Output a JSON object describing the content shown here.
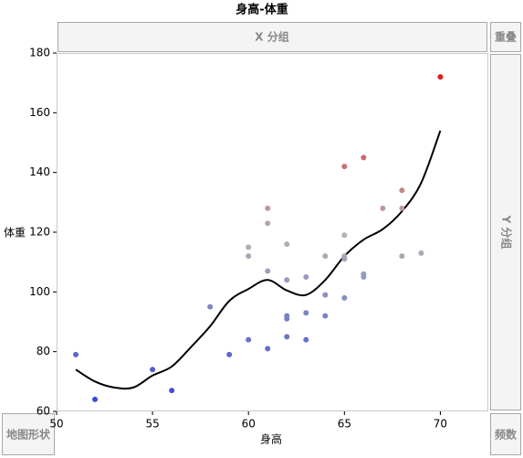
{
  "chart_data": {
    "type": "scatter",
    "title": "身高-体重",
    "x_label": "身高",
    "y_label": "体重",
    "zones": {
      "x_group": "X 分组",
      "overlay": "重叠",
      "y_group": "Y 分组",
      "map_shape": "地图形状",
      "frequency": "频数"
    },
    "x": [
      51,
      52,
      55,
      56,
      58,
      59,
      60,
      60,
      60,
      61,
      61,
      61,
      61,
      62,
      62,
      62,
      62,
      62,
      63,
      63,
      63,
      64,
      64,
      64,
      65,
      65,
      65,
      65,
      65,
      66,
      66,
      66,
      67,
      68,
      68,
      68,
      69,
      70
    ],
    "series": [
      {
        "values": [
          79,
          64,
          74,
          67,
          95,
          79,
          115,
          112,
          84,
          128,
          123,
          107,
          81,
          116,
          104,
          92,
          91,
          85,
          105,
          93,
          84,
          112,
          99,
          92,
          142,
          119,
          112,
          111,
          98,
          145,
          106,
          105,
          128,
          134,
          128,
          112,
          113,
          172
        ]
      }
    ],
    "color_scale": [
      "#3a4ad6",
      "#b4b4b4",
      "#e01e1e"
    ],
    "smoother": {
      "color": "#000000",
      "x": [
        51,
        52,
        53,
        54,
        55,
        56,
        57,
        58,
        59,
        60,
        61,
        62,
        63,
        64,
        65,
        66,
        67,
        68,
        69,
        70
      ],
      "values": [
        74,
        70,
        68,
        68,
        72,
        75,
        81.5,
        88.5,
        97,
        101,
        104,
        100.5,
        99,
        104,
        112,
        117.5,
        121,
        127,
        136.5,
        154
      ]
    },
    "xlim": [
      50,
      72.5
    ],
    "ylim": [
      60,
      180
    ],
    "xticks": [
      50,
      55,
      60,
      65,
      70
    ],
    "yticks": [
      60,
      80,
      100,
      120,
      140,
      160,
      180
    ]
  }
}
